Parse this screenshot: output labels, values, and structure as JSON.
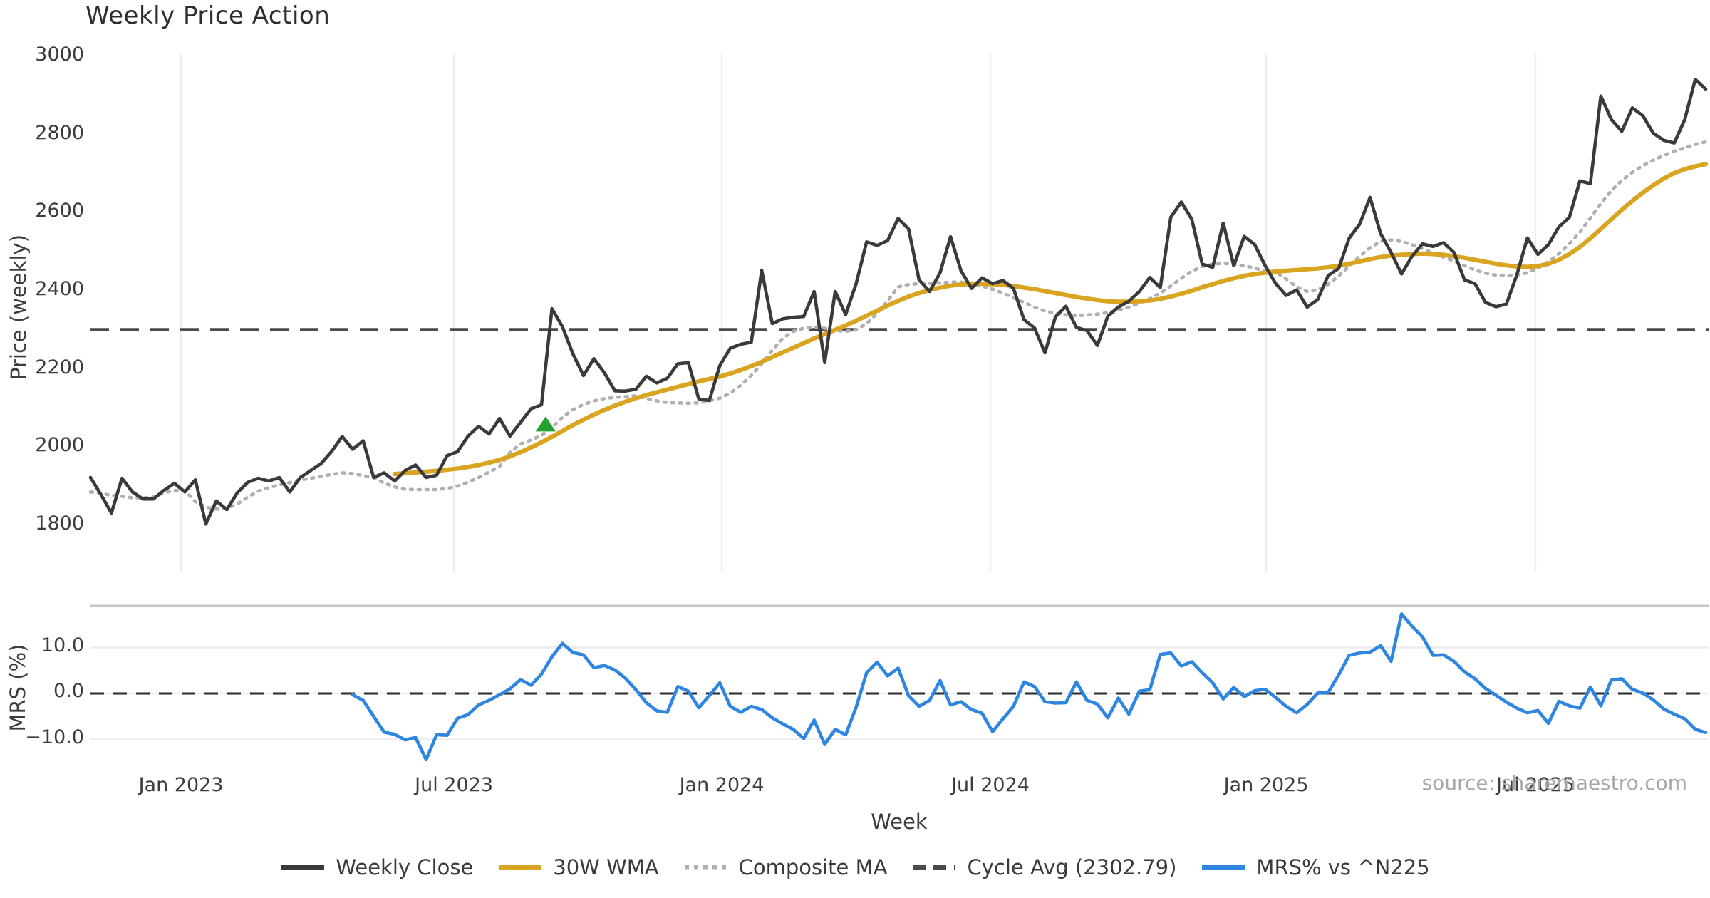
{
  "title": "Weekly Price Action",
  "source_text": "source: sharemaestro.com",
  "colors": {
    "close": "#3a3a3a",
    "wma": "#d9a521",
    "composite": "#b0b0b0",
    "cycle": "#4a4a4a",
    "mrs": "#2e86e0",
    "marker": "#1fa32e",
    "grid": "#ececf2",
    "spine": "#c2c6cc",
    "zero_dash": "#2a2a2a",
    "text": "#3c3c3c",
    "background": "#ffffff"
  },
  "axes": {
    "price": {
      "label": "Price (weekly)",
      "tick_labels": [
        "3000",
        "2800",
        "2600",
        "2400",
        "2200",
        "2000",
        "1800"
      ],
      "tick_values": [
        3000,
        2800,
        2600,
        2400,
        2200,
        2000,
        1800
      ],
      "ylim": [
        1680,
        3055
      ]
    },
    "mrs": {
      "label": "MRS (%)",
      "tick_labels": [
        "10.0",
        "0.0",
        "−10.0"
      ],
      "tick_values": [
        10,
        0,
        -10
      ],
      "ylim": [
        -16,
        19
      ]
    },
    "x": {
      "label": "Week",
      "ticks": [
        {
          "label": "Jan 2023",
          "i": 8.63
        },
        {
          "label": "Jul 2023",
          "i": 34.65
        },
        {
          "label": "Jan 2024",
          "i": 60.19
        },
        {
          "label": "Jul 2024",
          "i": 85.8
        },
        {
          "label": "Jan 2025",
          "i": 112.09
        },
        {
          "label": "Jul 2025",
          "i": 137.76
        }
      ]
    }
  },
  "legend": [
    {
      "label": "Weekly Close",
      "style": "solid",
      "color": "#3a3a3a"
    },
    {
      "label": "30W WMA",
      "style": "solid",
      "color": "#d9a521"
    },
    {
      "label": "Composite MA",
      "style": "dotted",
      "color": "#b0b0b0"
    },
    {
      "label": "Cycle Avg (2302.79)",
      "style": "dashed",
      "color": "#4a4a4a"
    },
    {
      "label": "MRS% vs ^N225",
      "style": "solid",
      "color": "#2e86e0"
    }
  ],
  "chart_data": {
    "type": "line",
    "x_unit": "week_index",
    "n_weeks": 155,
    "grid": "vertical-on-price-panel, horizontal-on-mrs-panel",
    "legend_position": "bottom-center",
    "cycle_avg": 2302.79,
    "buy_marker": {
      "shape": "triangle-up",
      "week_index": 43.4,
      "value": 2060
    },
    "series": [
      {
        "name": "Weekly Close",
        "panel": "price",
        "values": [
          1924,
          1880,
          1833,
          1922,
          1887,
          1869,
          1869,
          1891,
          1909,
          1887,
          1918,
          1805,
          1864,
          1842,
          1885,
          1912,
          1922,
          1915,
          1924,
          1887,
          1924,
          1942,
          1960,
          1991,
          2029,
          1996,
          2018,
          1924,
          1936,
          1915,
          1942,
          1956,
          1924,
          1930,
          1980,
          1990,
          2030,
          2055,
          2035,
          2075,
          2030,
          2065,
          2100,
          2110,
          2356,
          2310,
          2240,
          2185,
          2228,
          2192,
          2146,
          2145,
          2150,
          2183,
          2166,
          2178,
          2215,
          2218,
          2125,
          2121,
          2210,
          2255,
          2265,
          2270,
          2454,
          2318,
          2330,
          2334,
          2336,
          2400,
          2218,
          2400,
          2341,
          2420,
          2527,
          2518,
          2530,
          2587,
          2560,
          2430,
          2400,
          2448,
          2540,
          2453,
          2408,
          2435,
          2420,
          2428,
          2408,
          2328,
          2307,
          2243,
          2335,
          2362,
          2308,
          2300,
          2262,
          2337,
          2360,
          2375,
          2400,
          2436,
          2410,
          2590,
          2629,
          2585,
          2470,
          2462,
          2575,
          2466,
          2541,
          2520,
          2466,
          2420,
          2390,
          2404,
          2360,
          2379,
          2441,
          2459,
          2536,
          2572,
          2641,
          2548,
          2500,
          2445,
          2490,
          2522,
          2515,
          2525,
          2500,
          2430,
          2420,
          2372,
          2361,
          2368,
          2443,
          2537,
          2495,
          2520,
          2565,
          2590,
          2683,
          2676,
          2900,
          2840,
          2810,
          2870,
          2850,
          2805,
          2787,
          2780,
          2840,
          2943,
          2918
        ]
      },
      {
        "name": "30W WMA",
        "panel": "price",
        "values": [
          null,
          null,
          null,
          null,
          null,
          null,
          null,
          null,
          null,
          null,
          null,
          null,
          null,
          null,
          null,
          null,
          null,
          null,
          null,
          null,
          null,
          null,
          null,
          null,
          null,
          null,
          null,
          null,
          null,
          1933,
          1935,
          1937,
          1939,
          1941,
          1944,
          1947,
          1951,
          1956,
          1962,
          1969,
          1978,
          1989,
          2001,
          2014,
          2028,
          2043,
          2058,
          2072,
          2085,
          2097,
          2108,
          2118,
          2127,
          2135,
          2142,
          2149,
          2156,
          2163,
          2170,
          2176,
          2182,
          2190,
          2199,
          2209,
          2220,
          2232,
          2244,
          2256,
          2268,
          2280,
          2291,
          2302,
          2313,
          2325,
          2338,
          2351,
          2364,
          2376,
          2387,
          2396,
          2404,
          2410,
          2415,
          2418,
          2420,
          2420,
          2419,
          2417,
          2414,
          2410,
          2406,
          2401,
          2396,
          2391,
          2386,
          2382,
          2378,
          2375,
          2374,
          2374,
          2375,
          2377,
          2381,
          2387,
          2394,
          2402,
          2411,
          2419,
          2427,
          2434,
          2440,
          2445,
          2448,
          2451,
          2453,
          2455,
          2457,
          2459,
          2462,
          2466,
          2471,
          2477,
          2483,
          2488,
          2492,
          2494,
          2496,
          2497,
          2496,
          2494,
          2490,
          2486,
          2481,
          2476,
          2471,
          2467,
          2464,
          2463,
          2465,
          2471,
          2481,
          2496,
          2514,
          2536,
          2560,
          2585,
          2609,
          2632,
          2653,
          2672,
          2689,
          2703,
          2713,
          2720,
          2726
        ]
      },
      {
        "name": "Composite MA",
        "panel": "price",
        "values": [
          1887,
          1884,
          1878,
          1876,
          1872,
          1872,
          1874,
          1885,
          1891,
          1890,
          1862,
          1848,
          1843,
          1845,
          1856,
          1874,
          1889,
          1898,
          1905,
          1911,
          1918,
          1922,
          1927,
          1932,
          1936,
          1934,
          1929,
          1924,
          1910,
          1900,
          1894,
          1893,
          1893,
          1893,
          1896,
          1902,
          1912,
          1924,
          1938,
          1952,
          1988,
          2010,
          2020,
          2032,
          2052,
          2078,
          2098,
          2111,
          2120,
          2126,
          2129,
          2131,
          2133,
          2126,
          2120,
          2116,
          2115,
          2114,
          2115,
          2120,
          2127,
          2140,
          2160,
          2185,
          2215,
          2250,
          2280,
          2298,
          2306,
          2310,
          2306,
          2300,
          2298,
          2302,
          2318,
          2344,
          2376,
          2412,
          2418,
          2420,
          2421,
          2422,
          2424,
          2424,
          2420,
          2414,
          2406,
          2396,
          2384,
          2372,
          2360,
          2350,
          2344,
          2340,
          2338,
          2340,
          2342,
          2346,
          2352,
          2360,
          2370,
          2382,
          2396,
          2414,
          2434,
          2452,
          2464,
          2470,
          2472,
          2470,
          2466,
          2460,
          2452,
          2450,
          2432,
          2412,
          2400,
          2404,
          2418,
          2440,
          2465,
          2490,
          2512,
          2528,
          2532,
          2528,
          2520,
          2510,
          2498,
          2488,
          2478,
          2466,
          2455,
          2447,
          2442,
          2441,
          2442,
          2448,
          2460,
          2476,
          2497,
          2522,
          2552,
          2588,
          2625,
          2658,
          2684,
          2705,
          2722,
          2736,
          2748,
          2759,
          2768,
          2776,
          2783
        ]
      },
      {
        "name": "MRS% vs ^N225",
        "panel": "mrs",
        "values": [
          null,
          null,
          null,
          null,
          null,
          null,
          null,
          null,
          null,
          null,
          null,
          null,
          null,
          null,
          null,
          null,
          null,
          null,
          null,
          null,
          null,
          null,
          null,
          null,
          null,
          -0.3,
          -1.5,
          -5.0,
          -8.4,
          -8.9,
          -10.1,
          -9.6,
          -14.4,
          -9.0,
          -9.1,
          -5.4,
          -4.6,
          -2.5,
          -1.5,
          -0.3,
          1.0,
          3.0,
          1.8,
          4.2,
          8.0,
          10.9,
          8.9,
          8.4,
          5.6,
          6.1,
          5.1,
          3.3,
          0.8,
          -2.0,
          -3.8,
          -4.1,
          1.5,
          0.5,
          -3.1,
          -0.5,
          2.3,
          -2.8,
          -4.1,
          -2.8,
          -3.5,
          -5.3,
          -6.6,
          -7.8,
          -9.8,
          -5.8,
          -11.1,
          -7.8,
          -9.0,
          -3.0,
          4.5,
          6.8,
          3.8,
          5.5,
          -0.5,
          -2.8,
          -1.5,
          2.8,
          -2.5,
          -1.8,
          -3.5,
          -4.3,
          -8.3,
          -5.5,
          -2.8,
          2.5,
          1.5,
          -1.8,
          -2.1,
          -2.0,
          2.5,
          -1.5,
          -2.3,
          -5.3,
          -1.0,
          -4.5,
          0.5,
          0.8,
          8.5,
          8.8,
          6.0,
          6.9,
          4.5,
          2.3,
          -1.2,
          1.3,
          -0.7,
          0.6,
          0.9,
          -0.9,
          -2.8,
          -4.2,
          -2.4,
          0.1,
          0.2,
          4.0,
          8.3,
          8.8,
          9.0,
          10.4,
          7.0,
          17.3,
          14.6,
          12.3,
          8.3,
          8.4,
          7.0,
          4.7,
          3.2,
          1.1,
          -0.4,
          -1.9,
          -3.2,
          -4.2,
          -3.7,
          -6.5,
          -1.7,
          -2.7,
          -3.2,
          1.4,
          -2.7,
          2.9,
          3.2,
          0.9,
          0.1,
          -1.4,
          -3.4,
          -4.5,
          -5.5,
          -7.8,
          -8.5
        ]
      }
    ]
  }
}
